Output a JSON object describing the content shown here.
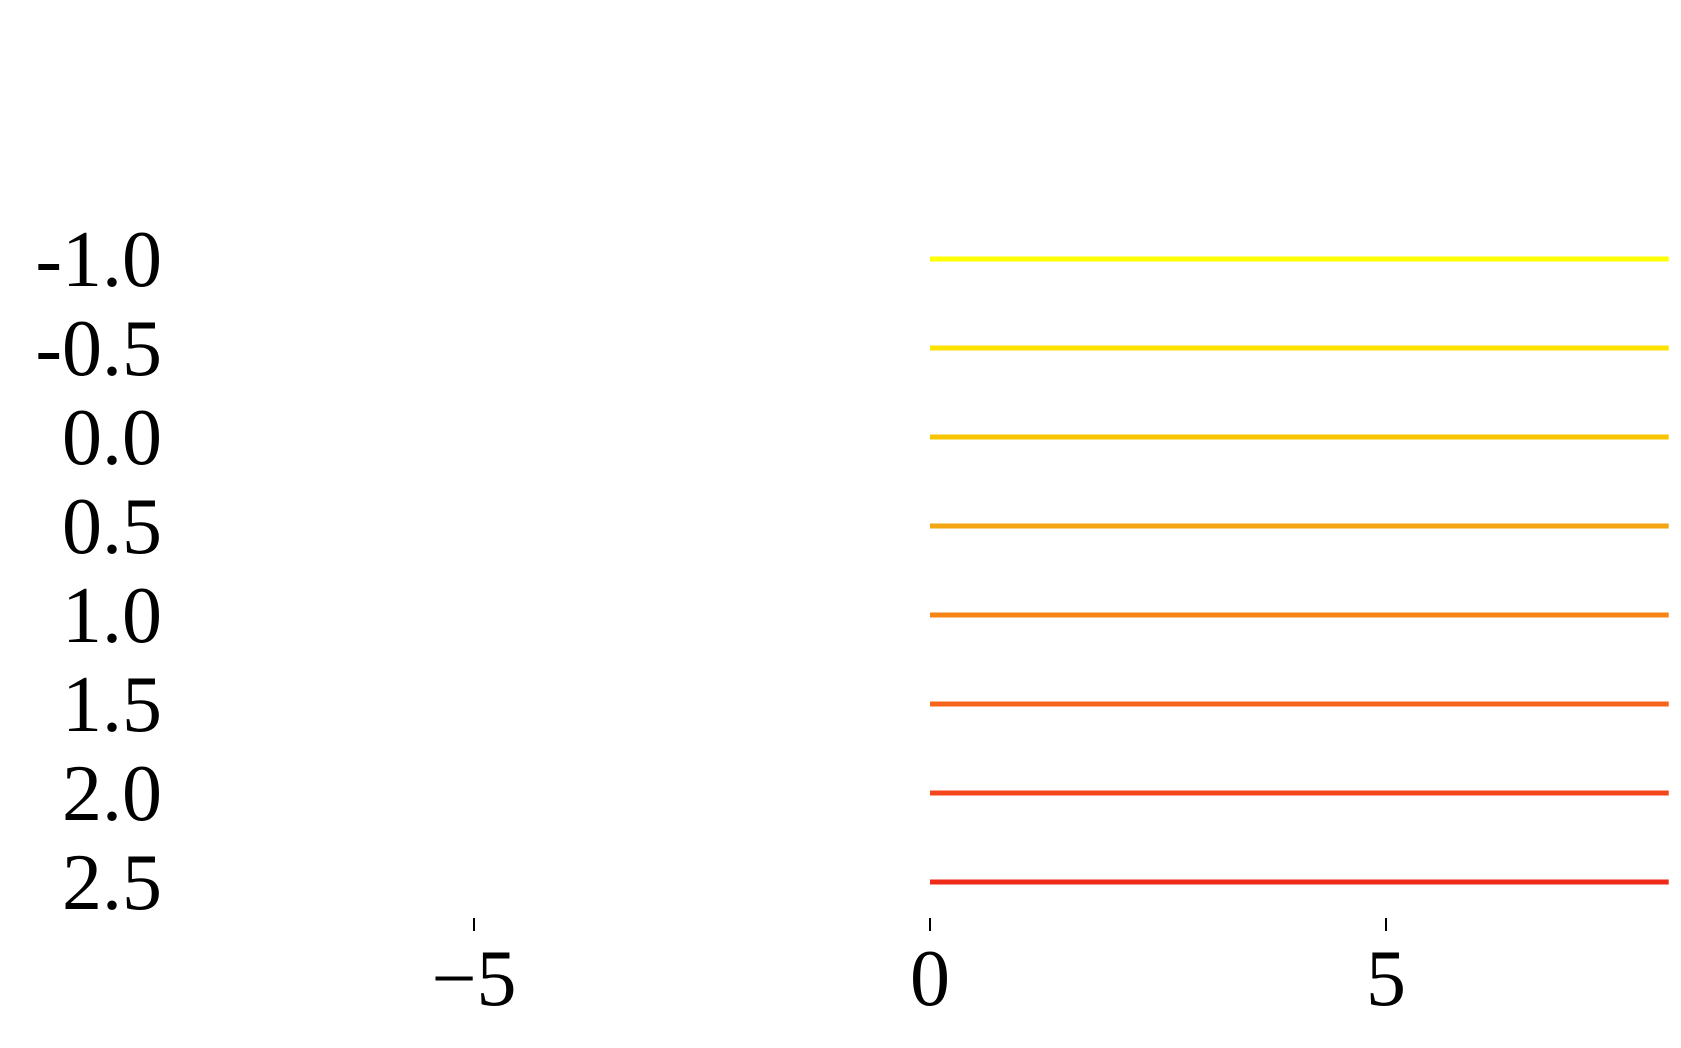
{
  "chart_data": {
    "type": "line",
    "title": "",
    "xlabel": "",
    "ylabel": "",
    "xlim": [
      -10,
      8.1
    ],
    "x_ticks": [
      -5,
      0,
      5
    ],
    "x_tick_labels": [
      "−5",
      "0",
      "5"
    ],
    "y_ticks": [
      -1.0,
      -0.5,
      0.0,
      0.5,
      1.0,
      1.5,
      2.0,
      2.5
    ],
    "y_tick_labels": [
      "-1.0",
      "-0.5",
      "0.0",
      "0.5",
      "1.0",
      "1.5",
      "2.0",
      "2.5"
    ],
    "y_inverted": true,
    "grid": false,
    "legend": "none",
    "series": [
      {
        "values_y": -1.0,
        "x": [
          0,
          8.1
        ],
        "color": "#ffff00"
      },
      {
        "values_y": -0.5,
        "x": [
          0,
          8.1
        ],
        "color": "#fbe200"
      },
      {
        "values_y": 0.0,
        "x": [
          0,
          8.1
        ],
        "color": "#f7c500"
      },
      {
        "values_y": 0.5,
        "x": [
          0,
          8.1
        ],
        "color": "#f3a512"
      },
      {
        "values_y": 1.0,
        "x": [
          0,
          8.1
        ],
        "color": "#f68516"
      },
      {
        "values_y": 1.5,
        "x": [
          0,
          8.1
        ],
        "color": "#f8631a"
      },
      {
        "values_y": 2.0,
        "x": [
          0,
          8.1
        ],
        "color": "#f5451a"
      },
      {
        "values_y": 2.5,
        "x": [
          0,
          8.1
        ],
        "color": "#ef2a19"
      }
    ]
  }
}
